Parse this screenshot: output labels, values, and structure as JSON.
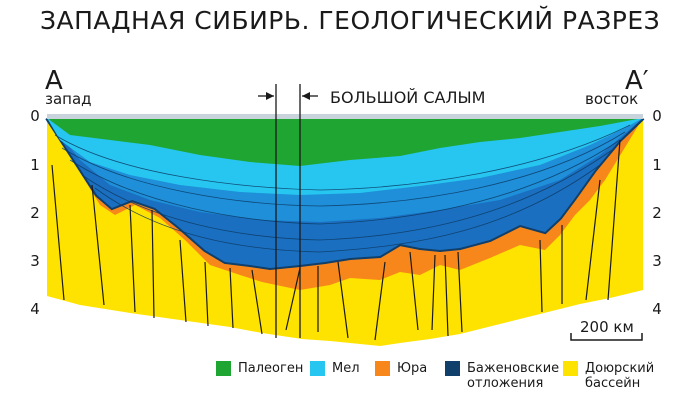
{
  "title": "ЗАПАДНАЯ СИБИРЬ. ГЕОЛОГИЧЕСКИЙ РАЗРЕЗ",
  "section": {
    "left_letter": "A",
    "right_letter": "A′",
    "left_direction": "запад",
    "right_direction": "восток",
    "feature_label": "БОЛЬШОЙ САЛЫМ",
    "feature_arrow": "→"
  },
  "depth_ticks": [
    "0",
    "1",
    "2",
    "3",
    "4"
  ],
  "scale_bar": "200 км",
  "legend": [
    {
      "label": "Палеоген",
      "color": "#1fa531"
    },
    {
      "label": "Мел",
      "color": "#26c6f0"
    },
    {
      "label": "Юра",
      "color": "#f7871a"
    },
    {
      "label": "Баженовские отложения",
      "color": "#0f3f6a"
    },
    {
      "label": "Доюрский бассейн",
      "color": "#ffe300"
    }
  ],
  "colors": {
    "surface_band": "#c9d3dc",
    "mel_deep": "#1e8fd8",
    "mel_deeper": "#1a6fc0"
  }
}
